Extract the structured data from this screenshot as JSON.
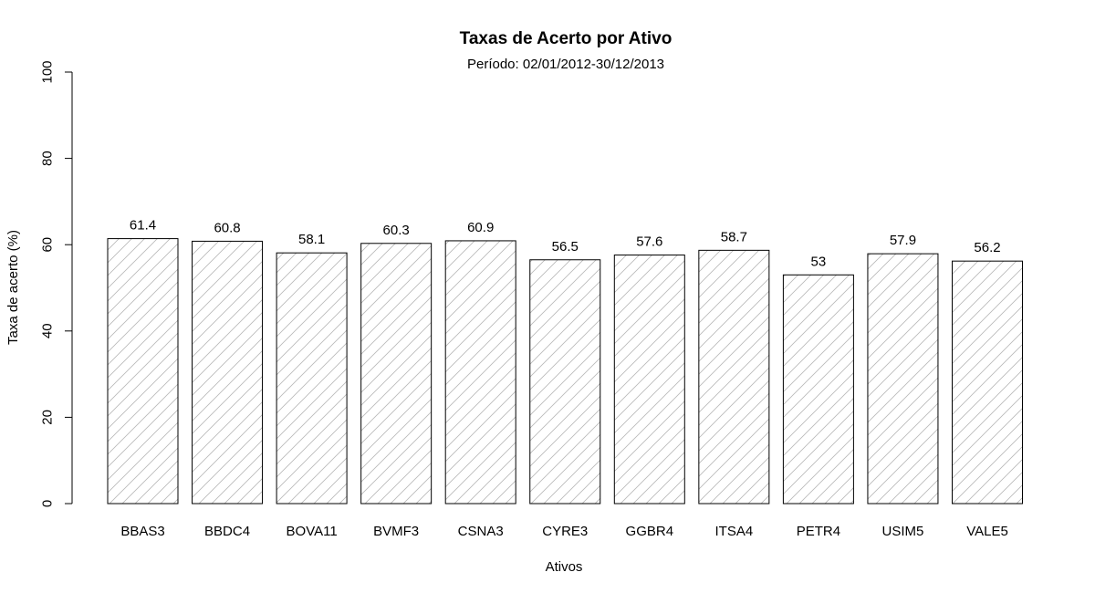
{
  "chart_data": {
    "type": "bar",
    "title": "Taxas de Acerto por Ativo",
    "subtitle": "Período: 02/01/2012-30/12/2013",
    "xlabel": "Ativos",
    "ylabel": "Taxa de acerto (%)",
    "categories": [
      "BBAS3",
      "BBDC4",
      "BOVA11",
      "BVMF3",
      "CSNA3",
      "CYRE3",
      "GGBR4",
      "ITSA4",
      "PETR4",
      "USIM5",
      "VALE5"
    ],
    "values": [
      61.4,
      60.8,
      58.1,
      60.3,
      60.9,
      56.5,
      57.6,
      58.7,
      53,
      57.9,
      56.2
    ],
    "value_labels": [
      "61.4",
      "60.8",
      "58.1",
      "60.3",
      "60.9",
      "56.5",
      "57.6",
      "58.7",
      "53",
      "57.9",
      "56.2"
    ],
    "ylim": [
      0,
      100
    ],
    "yticks": [
      0,
      20,
      40,
      60,
      80,
      100
    ],
    "ytick_labels": [
      "0",
      "20",
      "40",
      "60",
      "80",
      "100"
    ],
    "bar_fill": "hatched",
    "bar_border_color": "#000000",
    "hatch_color": "#b8b8b8",
    "grid": false,
    "legend": "none"
  }
}
